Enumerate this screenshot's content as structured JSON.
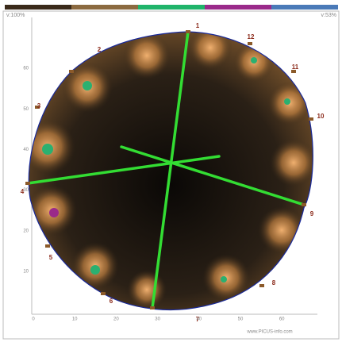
{
  "header": {
    "left_label": "v:100%",
    "right_label": "v:53%"
  },
  "sensors": [
    1,
    2,
    3,
    4,
    5,
    6,
    7,
    8,
    9,
    10,
    11,
    12
  ],
  "axis": {
    "x_ticks": [
      0,
      10,
      20,
      30,
      40,
      50,
      60
    ],
    "y_ticks": [
      10,
      20,
      30,
      40,
      50,
      60
    ]
  },
  "footer": {
    "watermark": "www.PICUS-info.com"
  }
}
